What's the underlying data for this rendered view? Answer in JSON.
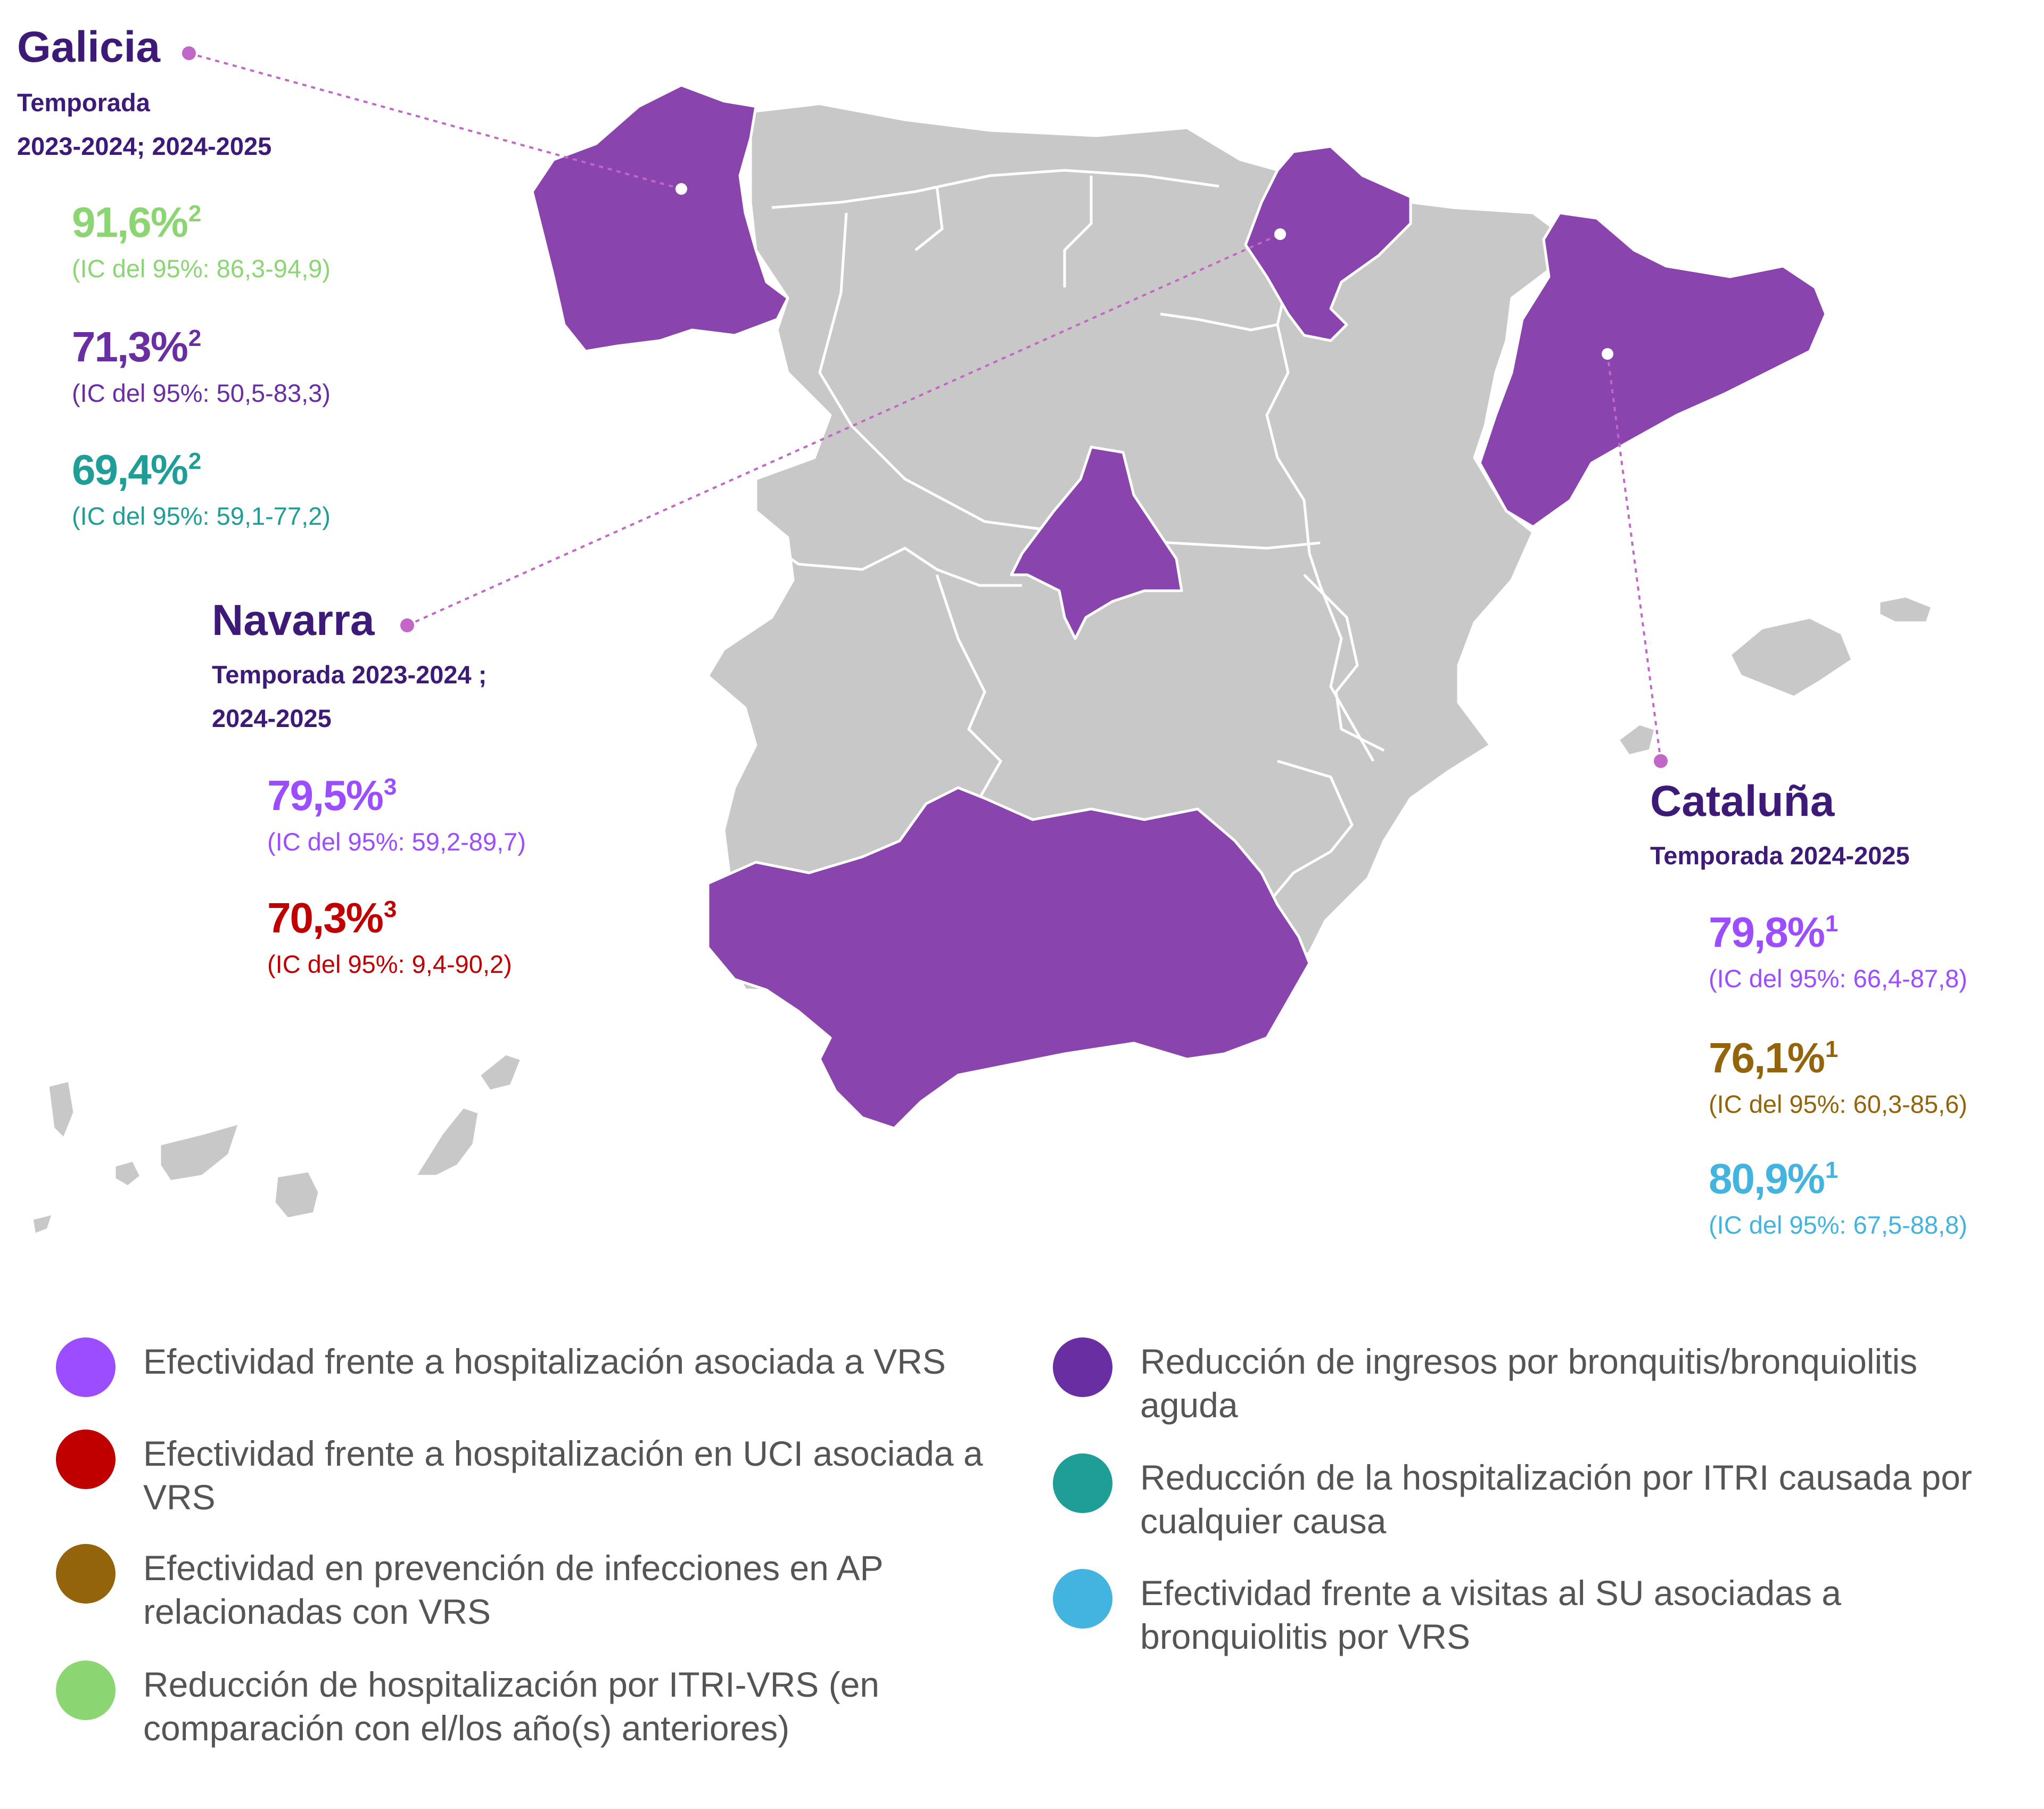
{
  "map": {
    "highlight_color": "#8a44ad",
    "base_color": "#c8c8c8",
    "leader_color": "#c266c7",
    "highlighted_regions": [
      "Galicia",
      "Navarra",
      "Madrid",
      "Cataluña",
      "Andalucía"
    ]
  },
  "colors": {
    "purple_light": "#9b4dff",
    "red": "#c00000",
    "olive": "#94640c",
    "green": "#8bd672",
    "purple_dark": "#6a2ea3",
    "teal": "#1e9e96",
    "blue": "#43b3e0",
    "title_purple": "#3d1a78"
  },
  "callouts": {
    "galicia": {
      "name": "Galicia",
      "season_line1": "Temporada",
      "season_line2": "2023-2024; 2024-2025",
      "stats": [
        {
          "value": "91,6%",
          "sup": "2",
          "ci": "(IC del 95%: 86,3-94,9)",
          "color": "#8bd672"
        },
        {
          "value": "71,3%",
          "sup": "2",
          "ci": "(IC del 95%: 50,5-83,3)",
          "color": "#6a2ea3"
        },
        {
          "value": "69,4%",
          "sup": "2",
          "ci": "(IC del 95%: 59,1-77,2)",
          "color": "#1e9e96"
        }
      ]
    },
    "navarra": {
      "name": "Navarra",
      "season_line1": "Temporada 2023-2024 ;",
      "season_line2": "2024-2025",
      "stats": [
        {
          "value": "79,5%",
          "sup": "3",
          "ci": "(IC del 95%: 59,2-89,7)",
          "color": "#9b4dff"
        },
        {
          "value": "70,3%",
          "sup": "3",
          "ci": "(IC del 95%: 9,4-90,2)",
          "color": "#c00000"
        }
      ]
    },
    "cataluna": {
      "name": "Cataluña",
      "season_line1": "Temporada 2024-2025",
      "stats": [
        {
          "value": "79,8%",
          "sup": "1",
          "ci": "(IC del 95%: 66,4-87,8)",
          "color": "#9b4dff"
        },
        {
          "value": "76,1%",
          "sup": "1",
          "ci": "(IC del 95%: 60,3-85,6)",
          "color": "#94640c"
        },
        {
          "value": "80,9%",
          "sup": "1",
          "ci": "(IC del 95%: 67,5-88,8)",
          "color": "#43b3e0"
        }
      ]
    }
  },
  "legend": [
    {
      "label": "Efectividad frente a hospitalización asociada a VRS",
      "color": "#9b4dff"
    },
    {
      "label": "Efectividad frente a hospitalización en UCI asociada a VRS",
      "color": "#c00000"
    },
    {
      "label": "Efectividad en prevención de infecciones en AP relacionadas con VRS",
      "color": "#94640c"
    },
    {
      "label": "Reducción de hospitalización por ITRI-VRS (en comparación con el/los año(s) anteriores)",
      "color": "#8bd672"
    },
    {
      "label": "Reducción de ingresos por bronquitis/bronquiolitis aguda",
      "color": "#6a2ea3"
    },
    {
      "label": "Reducción de la hospitalización por ITRI causada por cualquier causa",
      "color": "#1e9e96"
    },
    {
      "label": "Efectividad frente a visitas al SU asociadas a bronquiolitis por VRS",
      "color": "#43b3e0"
    }
  ]
}
